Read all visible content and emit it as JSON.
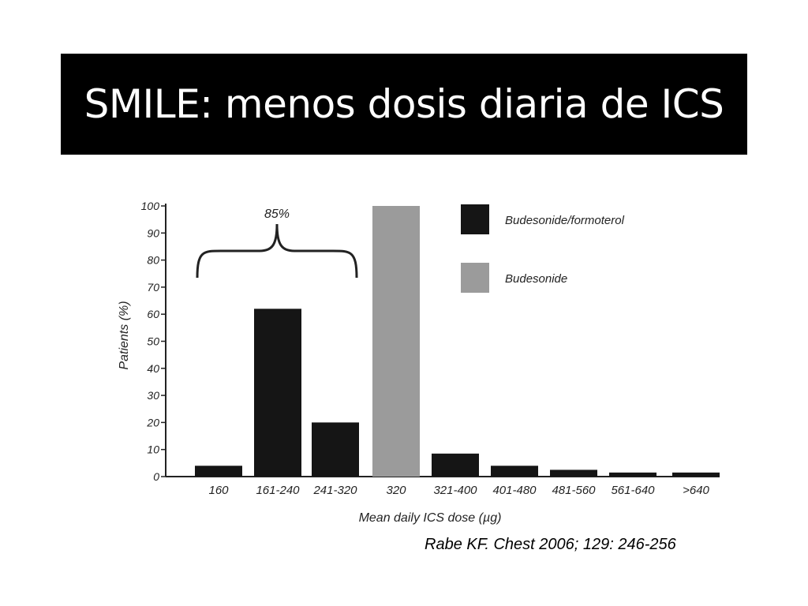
{
  "slide": {
    "title": "SMILE: menos dosis diaria de ICS",
    "citation": "Rabe KF. Chest 2006; 129: 246-256"
  },
  "chart_data": {
    "type": "bar",
    "categories": [
      "160",
      "161-240",
      "241-320",
      "320",
      "321-400",
      "401-480",
      "481-560",
      "561-640",
      ">640"
    ],
    "values": [
      4,
      62,
      20,
      100,
      8.5,
      4,
      2.5,
      1.5,
      1.5
    ],
    "bar_series": [
      "Budesonide/formoterol",
      "Budesonide/formoterol",
      "Budesonide/formoterol",
      "Budesonide",
      "Budesonide/formoterol",
      "Budesonide/formoterol",
      "Budesonide/formoterol",
      "Budesonide/formoterol",
      "Budesonide/formoterol"
    ],
    "series": [
      {
        "name": "Budesonide/formoterol",
        "color": "#151515"
      },
      {
        "name": "Budesonide",
        "color": "#9b9b9b"
      }
    ],
    "xlabel": "Mean daily ICS dose (µg)",
    "ylabel": "Patients (%)",
    "ylim": [
      0,
      100
    ],
    "yticks": [
      0,
      10,
      20,
      30,
      40,
      50,
      60,
      70,
      80,
      90,
      100
    ],
    "grid": false,
    "legend_position": "top-right",
    "annotation": {
      "text": "85%",
      "spans_categories": [
        "160",
        "161-240",
        "241-320"
      ]
    }
  }
}
